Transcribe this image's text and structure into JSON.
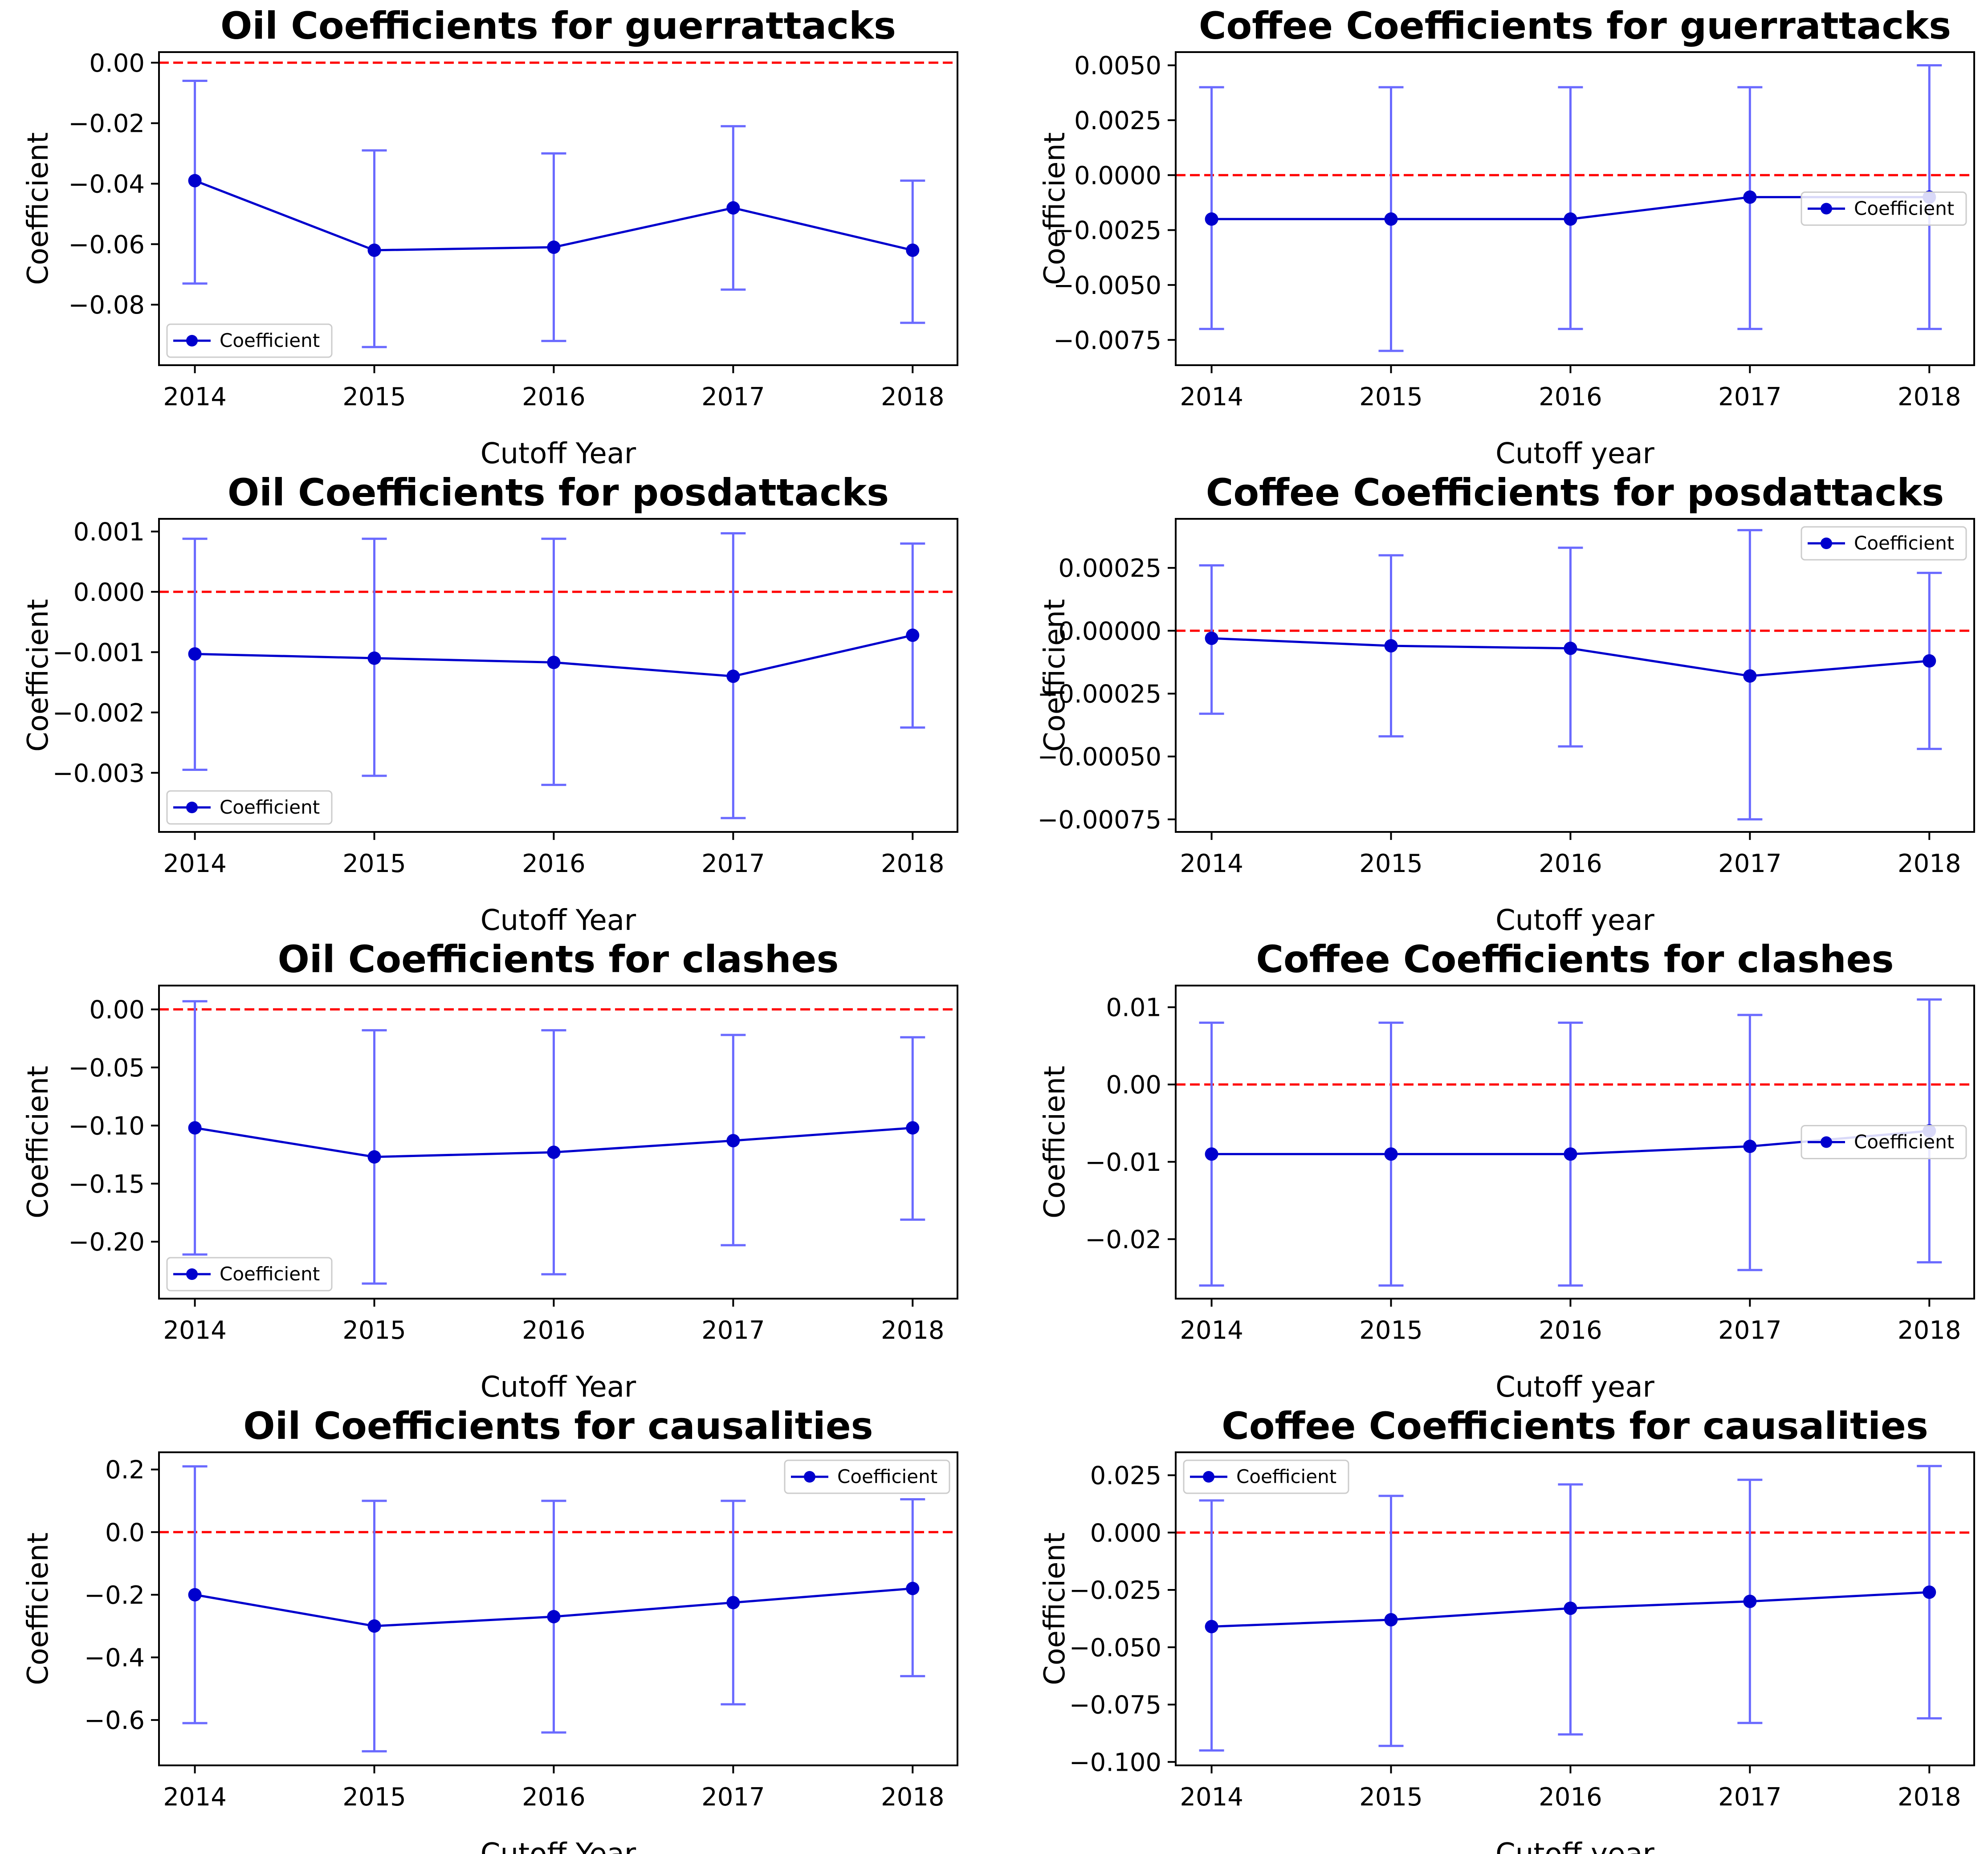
{
  "colors": {
    "line": "#0000cd",
    "errorbar": "#6a6aff",
    "zero_line": "#ff0000",
    "axes": "#000000"
  },
  "chart_data": [
    {
      "type": "line",
      "title": "Oil Coefficients for guerrattacks",
      "xlabel": "Cutoff Year",
      "ylabel": "Coefficient",
      "x": [
        2014,
        2015,
        2016,
        2017,
        2018
      ],
      "series": [
        {
          "name": "Coefficient",
          "values": [
            -0.039,
            -0.062,
            -0.061,
            -0.048,
            -0.062
          ],
          "lower": [
            -0.073,
            -0.094,
            -0.092,
            -0.075,
            -0.086
          ],
          "upper": [
            -0.006,
            -0.029,
            -0.03,
            -0.021,
            -0.039
          ]
        }
      ],
      "xlim": [
        2013.8,
        2018.25
      ],
      "ylim": [
        -0.1,
        0.0035
      ],
      "yticks": [
        0.0,
        -0.02,
        -0.04,
        -0.06,
        -0.08
      ],
      "ytick_labels": [
        "0.00",
        "−0.02",
        "−0.04",
        "−0.06",
        "−0.08"
      ],
      "reference_line": 0,
      "legend": "lower-left"
    },
    {
      "type": "line",
      "title": "Coffee Coefficients for guerrattacks",
      "xlabel": "Cutoff year",
      "ylabel": "Coefficient",
      "x": [
        2014,
        2015,
        2016,
        2017,
        2018
      ],
      "series": [
        {
          "name": "Coefficient",
          "values": [
            -0.002,
            -0.002,
            -0.002,
            -0.001,
            -0.001
          ],
          "lower": [
            -0.007,
            -0.008,
            -0.007,
            -0.007,
            -0.007
          ],
          "upper": [
            0.004,
            0.004,
            0.004,
            0.004,
            0.005
          ]
        }
      ],
      "xlim": [
        2013.8,
        2018.25
      ],
      "ylim": [
        -0.00865,
        0.0056
      ],
      "yticks": [
        0.005,
        0.0025,
        0.0,
        -0.0025,
        -0.005,
        -0.0075
      ],
      "ytick_labels": [
        "0.0050",
        "0.0025",
        "0.0000",
        "−0.0025",
        "−0.0050",
        "−0.0075"
      ],
      "reference_line": 0,
      "legend": "center-right"
    },
    {
      "type": "line",
      "title": "Oil Coefficients for posdattacks",
      "xlabel": "Cutoff Year",
      "ylabel": "Coefficient",
      "x": [
        2014,
        2015,
        2016,
        2017,
        2018
      ],
      "series": [
        {
          "name": "Coefficient",
          "values": [
            -0.00103,
            -0.0011,
            -0.00117,
            -0.0014,
            -0.00072
          ],
          "lower": [
            -0.00295,
            -0.00305,
            -0.0032,
            -0.00375,
            -0.00225
          ],
          "upper": [
            0.00088,
            0.00088,
            0.00088,
            0.00097,
            0.0008
          ]
        }
      ],
      "xlim": [
        2013.8,
        2018.25
      ],
      "ylim": [
        -0.00398,
        0.00121
      ],
      "yticks": [
        0.001,
        0.0,
        -0.001,
        -0.002,
        -0.003
      ],
      "ytick_labels": [
        "0.001",
        "0.000",
        "−0.001",
        "−0.002",
        "−0.003"
      ],
      "reference_line": 0,
      "legend": "lower-left"
    },
    {
      "type": "line",
      "title": "Coffee Coefficients for posdattacks",
      "xlabel": "Cutoff year",
      "ylabel": "Coefficient",
      "x": [
        2014,
        2015,
        2016,
        2017,
        2018
      ],
      "series": [
        {
          "name": "Coefficient",
          "values": [
            -3e-05,
            -6e-05,
            -7e-05,
            -0.00018,
            -0.00012
          ],
          "lower": [
            -0.00033,
            -0.00042,
            -0.00046,
            -0.00075,
            -0.00047
          ],
          "upper": [
            0.00026,
            0.0003,
            0.00033,
            0.0004,
            0.00023
          ]
        }
      ],
      "xlim": [
        2013.8,
        2018.25
      ],
      "ylim": [
        -0.0008,
        0.000445
      ],
      "yticks": [
        0.00025,
        0.0,
        -0.00025,
        -0.0005,
        -0.00075
      ],
      "ytick_labels": [
        "0.00025",
        "0.00000",
        "−0.00025",
        "−0.00050",
        "−0.00075"
      ],
      "reference_line": 0,
      "legend": "top-right"
    },
    {
      "type": "line",
      "title": "Oil Coefficients for clashes",
      "xlabel": "Cutoff Year",
      "ylabel": "Coefficient",
      "x": [
        2014,
        2015,
        2016,
        2017,
        2018
      ],
      "series": [
        {
          "name": "Coefficient",
          "values": [
            -0.102,
            -0.127,
            -0.123,
            -0.113,
            -0.102
          ],
          "lower": [
            -0.211,
            -0.236,
            -0.228,
            -0.203,
            -0.181
          ],
          "upper": [
            0.007,
            -0.018,
            -0.018,
            -0.022,
            -0.024
          ]
        }
      ],
      "xlim": [
        2013.8,
        2018.25
      ],
      "ylim": [
        -0.249,
        0.0205
      ],
      "yticks": [
        0.0,
        -0.05,
        -0.1,
        -0.15,
        -0.2
      ],
      "ytick_labels": [
        "0.00",
        "−0.05",
        "−0.10",
        "−0.15",
        "−0.20"
      ],
      "reference_line": 0,
      "legend": "lower-left"
    },
    {
      "type": "line",
      "title": "Coffee Coefficients for clashes",
      "xlabel": "Cutoff year",
      "ylabel": "Coefficient",
      "x": [
        2014,
        2015,
        2016,
        2017,
        2018
      ],
      "series": [
        {
          "name": "Coefficient",
          "values": [
            -0.009,
            -0.009,
            -0.009,
            -0.008,
            -0.006
          ],
          "lower": [
            -0.026,
            -0.026,
            -0.026,
            -0.024,
            -0.023
          ],
          "upper": [
            0.008,
            0.008,
            0.008,
            0.009,
            0.011
          ]
        }
      ],
      "xlim": [
        2013.8,
        2018.25
      ],
      "ylim": [
        -0.0277,
        0.0128
      ],
      "yticks": [
        0.01,
        0.0,
        -0.01,
        -0.02
      ],
      "ytick_labels": [
        "0.01",
        "0.00",
        "−0.01",
        "−0.02"
      ],
      "reference_line": 0,
      "legend": "center-right"
    },
    {
      "type": "line",
      "title": "Oil Coefficients for causalities",
      "xlabel": "Cutoff Year",
      "ylabel": "Coefficient",
      "x": [
        2014,
        2015,
        2016,
        2017,
        2018
      ],
      "series": [
        {
          "name": "Coefficient",
          "values": [
            -0.2,
            -0.3,
            -0.27,
            -0.225,
            -0.18
          ],
          "lower": [
            -0.61,
            -0.7,
            -0.64,
            -0.55,
            -0.46
          ],
          "upper": [
            0.21,
            0.1,
            0.1,
            0.1,
            0.105
          ]
        }
      ],
      "xlim": [
        2013.8,
        2018.25
      ],
      "ylim": [
        -0.745,
        0.255
      ],
      "yticks": [
        0.2,
        0.0,
        -0.2,
        -0.4,
        -0.6
      ],
      "ytick_labels": [
        "0.2",
        "0.0",
        "−0.2",
        "−0.4",
        "−0.6"
      ],
      "reference_line": 0,
      "legend": "top-right"
    },
    {
      "type": "line",
      "title": "Coffee Coefficients for causalities",
      "xlabel": "Cutoff year",
      "ylabel": "Coefficient",
      "x": [
        2014,
        2015,
        2016,
        2017,
        2018
      ],
      "series": [
        {
          "name": "Coefficient",
          "values": [
            -0.041,
            -0.038,
            -0.033,
            -0.03,
            -0.026
          ],
          "lower": [
            -0.095,
            -0.093,
            -0.088,
            -0.083,
            -0.081
          ],
          "upper": [
            0.014,
            0.016,
            0.021,
            0.023,
            0.029
          ]
        }
      ],
      "xlim": [
        2013.8,
        2018.25
      ],
      "ylim": [
        -0.1015,
        0.035
      ],
      "yticks": [
        0.025,
        0.0,
        -0.025,
        -0.05,
        -0.075,
        -0.1
      ],
      "ytick_labels": [
        "0.025",
        "0.000",
        "−0.025",
        "−0.050",
        "−0.075",
        "−0.100"
      ],
      "reference_line": 0,
      "legend": "top-left"
    }
  ]
}
